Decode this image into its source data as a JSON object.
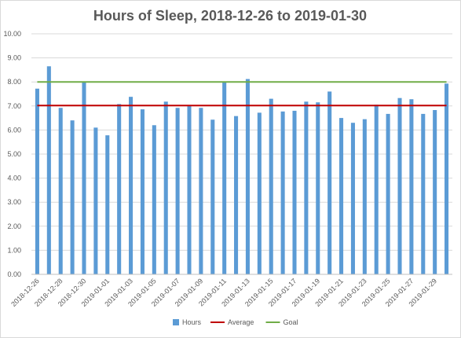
{
  "chart_data": {
    "type": "bar",
    "title": "Hours of Sleep, 2018-12-26 to 2019-01-30",
    "xlabel": "",
    "ylabel": "",
    "ylim": [
      0,
      10
    ],
    "y_ticks": [
      "0.00",
      "1.00",
      "2.00",
      "3.00",
      "4.00",
      "5.00",
      "6.00",
      "7.00",
      "8.00",
      "9.00",
      "10.00"
    ],
    "categories": [
      "2018-12-26",
      "2018-12-27",
      "2018-12-28",
      "2018-12-29",
      "2018-12-30",
      "2018-12-31",
      "2019-01-01",
      "2019-01-02",
      "2019-01-03",
      "2019-01-04",
      "2019-01-05",
      "2019-01-06",
      "2019-01-07",
      "2019-01-08",
      "2019-01-09",
      "2019-01-10",
      "2019-01-11",
      "2019-01-12",
      "2019-01-13",
      "2019-01-14",
      "2019-01-15",
      "2019-01-16",
      "2019-01-17",
      "2019-01-18",
      "2019-01-19",
      "2019-01-20",
      "2019-01-21",
      "2019-01-22",
      "2019-01-23",
      "2019-01-24",
      "2019-01-25",
      "2019-01-26",
      "2019-01-27",
      "2019-01-28",
      "2019-01-29",
      "2019-01-30"
    ],
    "x_tick_labels": [
      "2018-12-26",
      "2018-12-28",
      "2018-12-30",
      "2019-01-01",
      "2019-01-03",
      "2019-01-05",
      "2019-01-07",
      "2019-01-09",
      "2019-01-11",
      "2019-01-13",
      "2019-01-15",
      "2019-01-17",
      "2019-01-19",
      "2019-01-21",
      "2019-01-23",
      "2019-01-25",
      "2019-01-27",
      "2019-01-29"
    ],
    "series": [
      {
        "name": "Hours",
        "kind": "bar",
        "color": "#5b9bd5",
        "values": [
          7.72,
          8.65,
          6.92,
          6.4,
          8.0,
          6.1,
          5.78,
          7.08,
          7.38,
          6.86,
          6.2,
          7.18,
          6.92,
          7.0,
          6.92,
          6.43,
          8.0,
          6.58,
          8.12,
          6.72,
          7.3,
          6.77,
          6.8,
          7.18,
          7.15,
          7.6,
          6.5,
          6.3,
          6.45,
          7.05,
          6.67,
          7.33,
          7.28,
          6.67,
          6.83,
          7.93
        ]
      },
      {
        "name": "Average",
        "kind": "line",
        "color": "#c00000",
        "value": 7.02
      },
      {
        "name": "Goal",
        "kind": "line",
        "color": "#70ad47",
        "value": 8.0
      }
    ],
    "grid": true,
    "legend_position": "bottom"
  }
}
